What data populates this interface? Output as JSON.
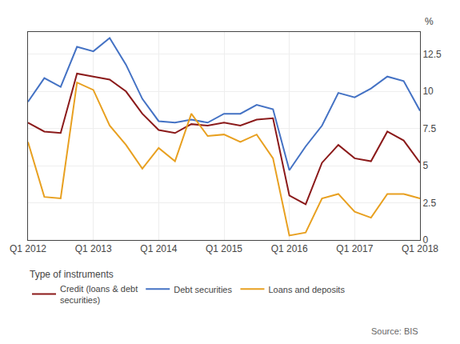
{
  "chart_data": {
    "type": "line",
    "ylabel": "%",
    "legend_title": "Type of instruments",
    "annotations": [
      "Source: BIS"
    ],
    "categories": [
      "Q1 2012",
      null,
      null,
      null,
      "Q1 2013",
      null,
      null,
      null,
      "Q1 2014",
      null,
      null,
      null,
      "Q1 2015",
      null,
      null,
      null,
      "Q1 2016",
      null,
      null,
      null,
      "Q1 2017",
      null,
      null,
      null,
      "Q1 2018"
    ],
    "ylim": [
      0,
      14
    ],
    "yticks": [
      0,
      2.5,
      5,
      7.5,
      10,
      12.5
    ],
    "grid": true,
    "legend": "bottom",
    "series": [
      {
        "name": "Credit (loans & debt\nsecurities)",
        "color": "#8b1a1a",
        "values": [
          7.9,
          7.3,
          7.2,
          11.2,
          11.0,
          10.8,
          10.0,
          8.5,
          7.4,
          7.2,
          7.8,
          7.7,
          7.9,
          7.7,
          8.1,
          8.2,
          3.0,
          2.4,
          5.2,
          6.4,
          5.5,
          5.3,
          7.3,
          6.7,
          5.2
        ]
      },
      {
        "name": "Debt securities",
        "color": "#4472c4",
        "values": [
          9.3,
          10.9,
          10.3,
          13.0,
          12.7,
          13.6,
          11.8,
          9.5,
          8.0,
          7.9,
          8.1,
          7.9,
          8.5,
          8.5,
          9.1,
          8.8,
          4.7,
          6.3,
          7.7,
          9.9,
          9.6,
          10.2,
          11.0,
          10.7,
          8.7
        ]
      },
      {
        "name": "Loans and deposits",
        "color": "#e8a020",
        "values": [
          6.6,
          2.9,
          2.8,
          10.6,
          10.1,
          7.7,
          6.4,
          4.8,
          6.2,
          5.3,
          8.5,
          7.0,
          7.1,
          6.6,
          7.1,
          5.5,
          0.3,
          0.5,
          2.8,
          3.1,
          1.9,
          1.5,
          3.1,
          3.1,
          2.8
        ]
      }
    ]
  }
}
